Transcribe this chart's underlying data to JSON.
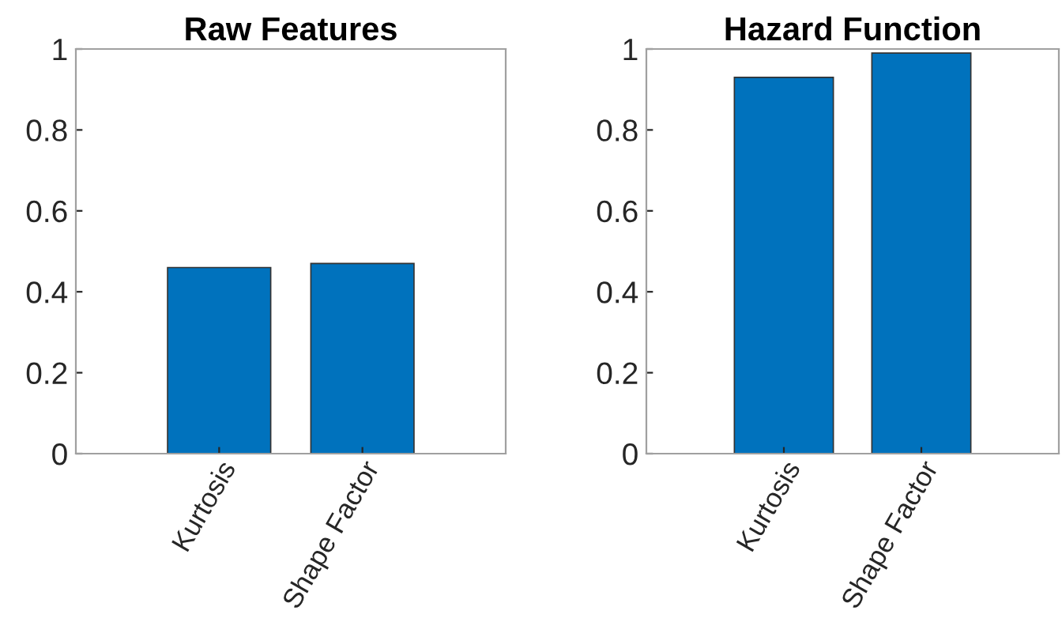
{
  "chart_data": [
    {
      "type": "bar",
      "title": "Raw Features",
      "categories": [
        "Kurtosis",
        "Shape Factor"
      ],
      "values": [
        0.46,
        0.47
      ],
      "color": "#0072bd",
      "ylim": [
        0,
        1
      ],
      "yticks": [
        0,
        0.2,
        0.4,
        0.6,
        0.8,
        1
      ],
      "grid": false
    },
    {
      "type": "bar",
      "title": "Hazard Function",
      "categories": [
        "Kurtosis",
        "Shape Factor"
      ],
      "values": [
        0.93,
        0.99
      ],
      "color": "#0072bd",
      "ylim": [
        0,
        1
      ],
      "yticks": [
        0,
        0.2,
        0.4,
        0.6,
        0.8,
        1
      ],
      "grid": false
    }
  ]
}
